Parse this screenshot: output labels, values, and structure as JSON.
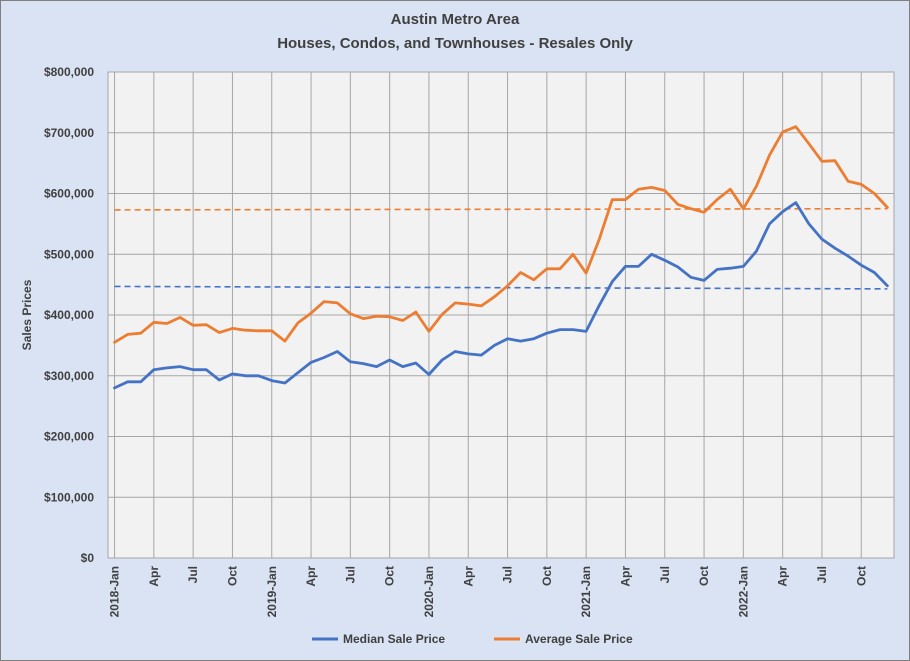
{
  "chart_data": {
    "type": "line",
    "title": "Austin Metro Area",
    "subtitle": "Houses, Condos, and Townhouses - Resales Only",
    "xlabel": "",
    "ylabel": "Sales Prices",
    "ylim": [
      0,
      800000
    ],
    "yticks": [
      "$0",
      "$100,000",
      "$200,000",
      "$300,000",
      "$400,000",
      "$500,000",
      "$600,000",
      "$700,000",
      "$800,000"
    ],
    "x_tick_labels": [
      {
        "i": 0,
        "label": "2018-Jan"
      },
      {
        "i": 3,
        "label": "Apr"
      },
      {
        "i": 6,
        "label": "Jul"
      },
      {
        "i": 9,
        "label": "Oct"
      },
      {
        "i": 12,
        "label": "2019-Jan"
      },
      {
        "i": 15,
        "label": "Apr"
      },
      {
        "i": 18,
        "label": "Jul"
      },
      {
        "i": 21,
        "label": "Oct"
      },
      {
        "i": 24,
        "label": "2020-Jan"
      },
      {
        "i": 27,
        "label": "Apr"
      },
      {
        "i": 30,
        "label": "Jul"
      },
      {
        "i": 33,
        "label": "Oct"
      },
      {
        "i": 36,
        "label": "2021-Jan"
      },
      {
        "i": 39,
        "label": "Apr"
      },
      {
        "i": 42,
        "label": "Jul"
      },
      {
        "i": 45,
        "label": "Oct"
      },
      {
        "i": 48,
        "label": "2022-Jan"
      },
      {
        "i": 51,
        "label": "Apr"
      },
      {
        "i": 54,
        "label": "Jul"
      },
      {
        "i": 57,
        "label": "Oct"
      }
    ],
    "grid": true,
    "legend": "bottom",
    "series": [
      {
        "name": "Median Sale Price",
        "color": "#4472c4",
        "values": [
          280000,
          290000,
          290000,
          310000,
          313000,
          315000,
          310000,
          310000,
          293000,
          303000,
          300000,
          300000,
          292000,
          288000,
          305000,
          322000,
          330000,
          340000,
          323000,
          320000,
          315000,
          326000,
          315000,
          321000,
          302000,
          326000,
          340000,
          336000,
          334000,
          350000,
          361000,
          357000,
          361000,
          370000,
          376000,
          376000,
          373000,
          416000,
          455000,
          480000,
          480000,
          500000,
          490000,
          479000,
          462000,
          457000,
          475000,
          477000,
          480000,
          505000,
          550000,
          570000,
          585000,
          550000,
          525000,
          510000,
          497000,
          482000,
          470000,
          448000
        ]
      },
      {
        "name": "Average Sale Price",
        "color": "#ed7d31",
        "values": [
          355000,
          368000,
          370000,
          388000,
          386000,
          396000,
          383000,
          384000,
          371000,
          378000,
          375000,
          374000,
          374000,
          357000,
          387000,
          403000,
          422000,
          420000,
          402000,
          394000,
          398000,
          397000,
          391000,
          405000,
          373000,
          401000,
          420000,
          418000,
          415000,
          430000,
          448000,
          470000,
          458000,
          476000,
          476000,
          500000,
          469000,
          525000,
          590000,
          590000,
          607000,
          610000,
          605000,
          582000,
          575000,
          569000,
          590000,
          607000,
          575000,
          612000,
          663000,
          701000,
          710000,
          682000,
          653000,
          654000,
          620000,
          615000,
          600000,
          577000
        ]
      }
    ],
    "trendlines": [
      {
        "series": "Median Sale Price",
        "start": 447000,
        "end": 443000
      },
      {
        "series": "Average Sale Price",
        "start": 573000,
        "end": 575000
      }
    ]
  }
}
